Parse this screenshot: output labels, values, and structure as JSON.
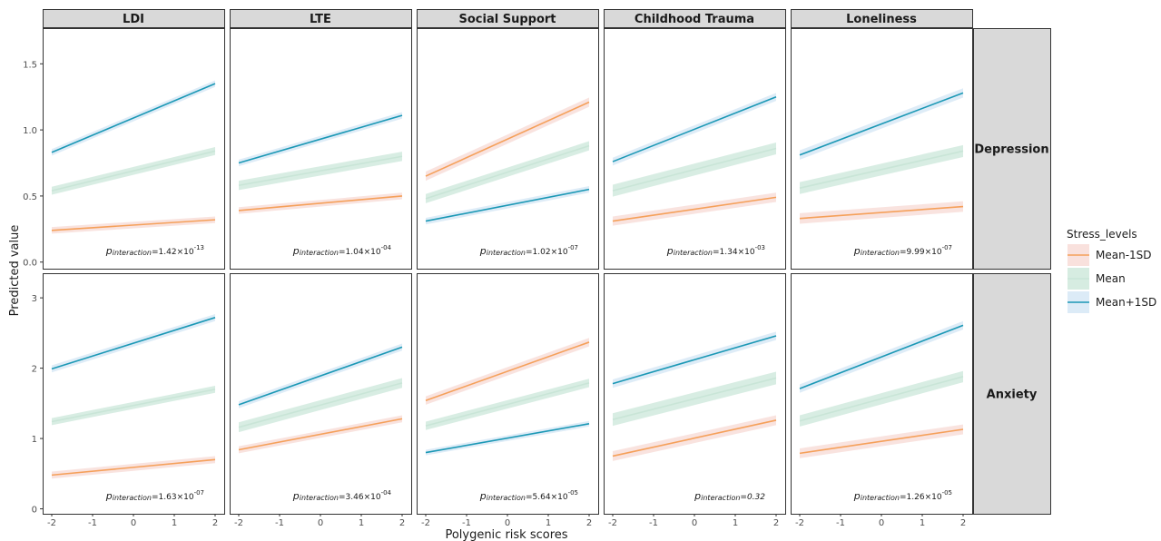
{
  "chart_data": {
    "type": "line",
    "xlabel": "Polygenic risk scores",
    "ylabel": "Predicted value",
    "x_ticks": [
      -2,
      -1,
      0,
      1,
      2
    ],
    "xlim": [
      -2.2,
      2.2
    ],
    "columns": [
      "LDI",
      "LTE",
      "Social Support",
      "Childhood Trauma",
      "Loneliness"
    ],
    "rows": [
      {
        "name": "Depression",
        "ylim": [
          -0.05,
          1.77
        ],
        "y_ticks": [
          0.0,
          0.5,
          1.0,
          1.5
        ],
        "y_tick_labels": [
          "0.0",
          "0.5",
          "1.0",
          "1.5"
        ]
      },
      {
        "name": "Anxiety",
        "ylim": [
          -0.07,
          3.35
        ],
        "y_ticks": [
          0,
          1,
          2,
          3
        ],
        "y_tick_labels": [
          "0",
          "1",
          "2",
          "3"
        ]
      }
    ],
    "legend": {
      "title": "Stress_levels",
      "position": "right",
      "entries": [
        {
          "label": "Mean-1SD",
          "color": "#F5A05A",
          "fill": "#F9E1DD"
        },
        {
          "label": "Mean",
          "color": "#C9E5D7",
          "fill": "#D6ECE1"
        },
        {
          "label": "Mean+1SD",
          "color": "#1B98B5",
          "fill": "#DCEBF7"
        }
      ]
    },
    "panels": [
      {
        "row": "Depression",
        "col": "LDI",
        "p_value": "1.42×10",
        "p_exp": "-13",
        "series": [
          {
            "name": "Mean-1SD",
            "x": [
              -2,
              2
            ],
            "y": [
              0.24,
              0.32
            ],
            "band": 0.025
          },
          {
            "name": "Mean",
            "x": [
              -2,
              2
            ],
            "y": [
              0.54,
              0.84
            ],
            "band": 0.03
          },
          {
            "name": "Mean+1SD",
            "x": [
              -2,
              2
            ],
            "y": [
              0.83,
              1.35
            ],
            "band": 0.025
          }
        ]
      },
      {
        "row": "Depression",
        "col": "LTE",
        "p_value": "1.04×10",
        "p_exp": "-04",
        "series": [
          {
            "name": "Mean-1SD",
            "x": [
              -2,
              2
            ],
            "y": [
              0.39,
              0.5
            ],
            "band": 0.025
          },
          {
            "name": "Mean",
            "x": [
              -2,
              2
            ],
            "y": [
              0.58,
              0.8
            ],
            "band": 0.035
          },
          {
            "name": "Mean+1SD",
            "x": [
              -2,
              2
            ],
            "y": [
              0.75,
              1.11
            ],
            "band": 0.025
          }
        ]
      },
      {
        "row": "Depression",
        "col": "Social Support",
        "p_value": "1.02×10",
        "p_exp": "-07",
        "series": [
          {
            "name": "Mean-1SD",
            "x": [
              -2,
              2
            ],
            "y": [
              0.65,
              1.21
            ],
            "band": 0.035
          },
          {
            "name": "Mean",
            "x": [
              -2,
              2
            ],
            "y": [
              0.48,
              0.88
            ],
            "band": 0.035
          },
          {
            "name": "Mean+1SD",
            "x": [
              -2,
              2
            ],
            "y": [
              0.31,
              0.55
            ],
            "band": 0.025
          }
        ]
      },
      {
        "row": "Depression",
        "col": "Childhood Trauma",
        "p_value": "1.34×10",
        "p_exp": "-03",
        "series": [
          {
            "name": "Mean-1SD",
            "x": [
              -2,
              2
            ],
            "y": [
              0.31,
              0.49
            ],
            "band": 0.035
          },
          {
            "name": "Mean",
            "x": [
              -2,
              2
            ],
            "y": [
              0.54,
              0.86
            ],
            "band": 0.045
          },
          {
            "name": "Mean+1SD",
            "x": [
              -2,
              2
            ],
            "y": [
              0.76,
              1.25
            ],
            "band": 0.03
          }
        ]
      },
      {
        "row": "Depression",
        "col": "Loneliness",
        "p_value": "9.99×10",
        "p_exp": "-07",
        "series": [
          {
            "name": "Mean-1SD",
            "x": [
              -2,
              2
            ],
            "y": [
              0.33,
              0.42
            ],
            "band": 0.04
          },
          {
            "name": "Mean",
            "x": [
              -2,
              2
            ],
            "y": [
              0.56,
              0.84
            ],
            "band": 0.045
          },
          {
            "name": "Mean+1SD",
            "x": [
              -2,
              2
            ],
            "y": [
              0.81,
              1.28
            ],
            "band": 0.035
          }
        ]
      },
      {
        "row": "Anxiety",
        "col": "LDI",
        "p_value": "1.63×10",
        "p_exp": "-07",
        "series": [
          {
            "name": "Mean-1SD",
            "x": [
              -2,
              2
            ],
            "y": [
              0.48,
              0.7
            ],
            "band": 0.05
          },
          {
            "name": "Mean",
            "x": [
              -2,
              2
            ],
            "y": [
              1.24,
              1.7
            ],
            "band": 0.05
          },
          {
            "name": "Mean+1SD",
            "x": [
              -2,
              2
            ],
            "y": [
              1.99,
              2.72
            ],
            "band": 0.05
          }
        ]
      },
      {
        "row": "Anxiety",
        "col": "LTE",
        "p_value": "3.46×10",
        "p_exp": "-04",
        "series": [
          {
            "name": "Mean-1SD",
            "x": [
              -2,
              2
            ],
            "y": [
              0.84,
              1.28
            ],
            "band": 0.05
          },
          {
            "name": "Mean",
            "x": [
              -2,
              2
            ],
            "y": [
              1.16,
              1.79
            ],
            "band": 0.07
          },
          {
            "name": "Mean+1SD",
            "x": [
              -2,
              2
            ],
            "y": [
              1.48,
              2.3
            ],
            "band": 0.05
          }
        ]
      },
      {
        "row": "Anxiety",
        "col": "Social Support",
        "p_value": "5.64×10",
        "p_exp": "-05",
        "series": [
          {
            "name": "Mean-1SD",
            "x": [
              -2,
              2
            ],
            "y": [
              1.54,
              2.37
            ],
            "band": 0.06
          },
          {
            "name": "Mean",
            "x": [
              -2,
              2
            ],
            "y": [
              1.18,
              1.79
            ],
            "band": 0.06
          },
          {
            "name": "Mean+1SD",
            "x": [
              -2,
              2
            ],
            "y": [
              0.8,
              1.21
            ],
            "band": 0.04
          }
        ]
      },
      {
        "row": "Anxiety",
        "col": "Childhood Trauma",
        "p_value": "0.32",
        "p_exp": "",
        "series": [
          {
            "name": "Mean-1SD",
            "x": [
              -2,
              2
            ],
            "y": [
              0.75,
              1.26
            ],
            "band": 0.07
          },
          {
            "name": "Mean",
            "x": [
              -2,
              2
            ],
            "y": [
              1.27,
              1.86
            ],
            "band": 0.09
          },
          {
            "name": "Mean+1SD",
            "x": [
              -2,
              2
            ],
            "y": [
              1.78,
              2.46
            ],
            "band": 0.06
          }
        ]
      },
      {
        "row": "Anxiety",
        "col": "Loneliness",
        "p_value": "1.26×10",
        "p_exp": "-05",
        "series": [
          {
            "name": "Mean-1SD",
            "x": [
              -2,
              2
            ],
            "y": [
              0.79,
              1.13
            ],
            "band": 0.07
          },
          {
            "name": "Mean",
            "x": [
              -2,
              2
            ],
            "y": [
              1.25,
              1.88
            ],
            "band": 0.08
          },
          {
            "name": "Mean+1SD",
            "x": [
              -2,
              2
            ],
            "y": [
              1.71,
              2.61
            ],
            "band": 0.06
          }
        ]
      }
    ],
    "annotation_prefix": "p",
    "annotation_subscript": "interaction"
  }
}
